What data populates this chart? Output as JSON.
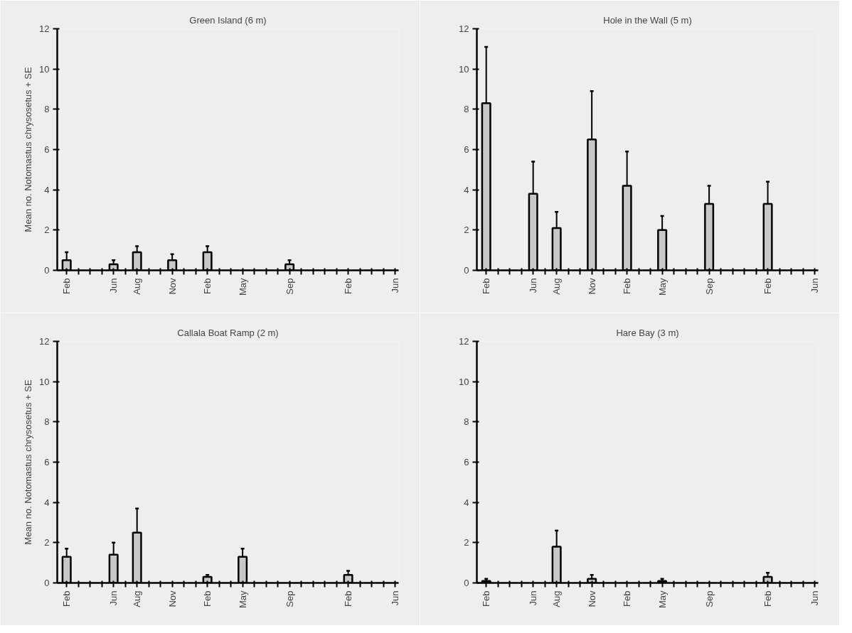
{
  "chart_data": [
    {
      "type": "bar",
      "title": "Green Island (6 m)",
      "ylabel": "Mean no. Notomastus chrysosetus + SE",
      "categories": [
        "Feb",
        null,
        null,
        null,
        "Jun",
        null,
        "Aug",
        null,
        null,
        "Nov",
        null,
        null,
        "Feb",
        null,
        null,
        "May",
        null,
        null,
        null,
        "Sep",
        null,
        null,
        null,
        null,
        "Feb",
        null,
        null,
        null,
        "Jun"
      ],
      "values": [
        0.5,
        null,
        null,
        null,
        0.3,
        null,
        0.9,
        null,
        null,
        0.5,
        null,
        null,
        0.9,
        null,
        null,
        null,
        null,
        null,
        null,
        0.3,
        null,
        null,
        null,
        null,
        null,
        null,
        null,
        null,
        null
      ],
      "errors": [
        [
          0.5,
          0.9
        ],
        null,
        null,
        null,
        [
          0.3,
          0.5
        ],
        null,
        [
          0.9,
          1.2
        ],
        null,
        null,
        [
          0.5,
          0.8
        ],
        null,
        null,
        [
          0.9,
          1.2
        ],
        null,
        null,
        null,
        null,
        null,
        null,
        [
          0.3,
          0.5
        ],
        null,
        null,
        null,
        null,
        null,
        null,
        null,
        null,
        null
      ],
      "color": "#c8c8c8",
      "ylim": [
        0,
        12
      ],
      "yticks": [
        0,
        2,
        4,
        6,
        8,
        10,
        12
      ]
    },
    {
      "type": "bar",
      "title": "Hole in the Wall (5 m)",
      "categories": [
        "Feb",
        null,
        null,
        null,
        "Jun",
        null,
        "Aug",
        null,
        null,
        "Nov",
        null,
        null,
        "Feb",
        null,
        null,
        "May",
        null,
        null,
        null,
        "Sep",
        null,
        null,
        null,
        null,
        "Feb",
        null,
        null,
        null,
        "Jun"
      ],
      "values": [
        8.3,
        null,
        null,
        null,
        3.8,
        null,
        2.1,
        null,
        null,
        6.5,
        null,
        null,
        4.2,
        null,
        null,
        2.0,
        null,
        null,
        null,
        3.3,
        null,
        null,
        null,
        null,
        3.3,
        null,
        null,
        null,
        null
      ],
      "errors": [
        [
          8.3,
          11.1
        ],
        null,
        null,
        null,
        [
          3.8,
          5.4
        ],
        null,
        [
          2.1,
          2.9
        ],
        null,
        null,
        [
          6.5,
          8.9
        ],
        null,
        null,
        [
          4.2,
          5.9
        ],
        null,
        null,
        [
          2.0,
          2.7
        ],
        null,
        null,
        null,
        [
          3.3,
          4.2
        ],
        null,
        null,
        null,
        null,
        [
          3.3,
          4.4
        ],
        null,
        null,
        null,
        null
      ],
      "color": "#c8c8c8",
      "ylim": [
        0,
        12
      ],
      "yticks": [
        0,
        2,
        4,
        6,
        8,
        10,
        12
      ]
    },
    {
      "type": "bar",
      "title": "Callala Boat Ramp (2 m)",
      "ylabel": "Mean no. Notomastus chrysosetus + SE",
      "categories": [
        "Feb",
        null,
        null,
        null,
        "Jun",
        null,
        "Aug",
        null,
        null,
        "Nov",
        null,
        null,
        "Feb",
        null,
        null,
        "May",
        null,
        null,
        null,
        "Sep",
        null,
        null,
        null,
        null,
        "Feb",
        null,
        null,
        null,
        "Jun"
      ],
      "values": [
        1.3,
        null,
        null,
        null,
        1.4,
        null,
        2.5,
        null,
        null,
        null,
        null,
        null,
        0.3,
        null,
        null,
        1.3,
        null,
        null,
        null,
        null,
        null,
        null,
        null,
        null,
        0.4,
        null,
        null,
        null,
        null
      ],
      "errors": [
        [
          1.3,
          1.7
        ],
        null,
        null,
        null,
        [
          1.4,
          2.0
        ],
        null,
        [
          2.5,
          3.7
        ],
        null,
        null,
        null,
        null,
        null,
        [
          0.3,
          0.4
        ],
        null,
        null,
        [
          1.3,
          1.7
        ],
        null,
        null,
        null,
        null,
        null,
        null,
        null,
        null,
        [
          0.4,
          0.6
        ],
        null,
        null,
        null,
        null
      ],
      "color": "#c8c8c8",
      "ylim": [
        0,
        12
      ],
      "yticks": [
        0,
        2,
        4,
        6,
        8,
        10,
        12
      ]
    },
    {
      "type": "bar",
      "title": "Hare Bay (3 m)",
      "categories": [
        "Feb",
        null,
        null,
        null,
        "Jun",
        null,
        "Aug",
        null,
        null,
        "Nov",
        null,
        null,
        "Feb",
        null,
        null,
        "May",
        null,
        null,
        null,
        "Sep",
        null,
        null,
        null,
        null,
        "Feb",
        null,
        null,
        null,
        "Jun"
      ],
      "values": [
        0.1,
        null,
        null,
        null,
        null,
        null,
        1.8,
        null,
        null,
        0.2,
        null,
        null,
        null,
        null,
        null,
        0.1,
        null,
        null,
        null,
        null,
        null,
        null,
        null,
        null,
        0.3,
        null,
        null,
        null,
        null
      ],
      "errors": [
        [
          0.1,
          0.2
        ],
        null,
        null,
        null,
        null,
        null,
        [
          1.8,
          2.6
        ],
        null,
        null,
        [
          0.2,
          0.4
        ],
        null,
        null,
        null,
        null,
        null,
        [
          0.1,
          0.2
        ],
        null,
        null,
        null,
        null,
        null,
        null,
        null,
        null,
        [
          0.3,
          0.5
        ],
        null,
        null,
        null,
        null
      ],
      "color": "#c8c8c8",
      "ylim": [
        0,
        12
      ],
      "yticks": [
        0,
        2,
        4,
        6,
        8,
        10,
        12
      ]
    }
  ]
}
